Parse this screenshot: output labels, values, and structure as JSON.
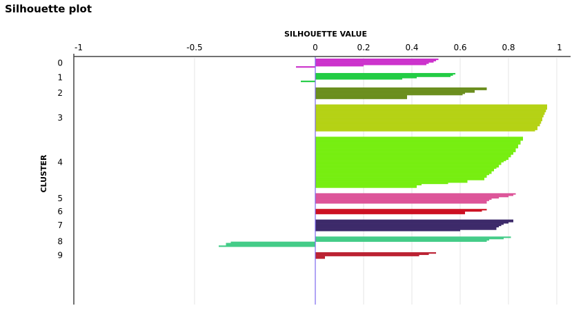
{
  "title": "Silhouette plot",
  "chart_data": {
    "type": "bar",
    "orientation": "horizontal",
    "title": "Silhouette plot",
    "xlabel": "SILHOUETTE VALUE",
    "ylabel": "CLUSTER",
    "xlim": [
      -1,
      1
    ],
    "x_ticks": [
      "-1",
      "-0.5",
      "0",
      "0.2",
      "0.4",
      "0.6",
      "0.8",
      "1"
    ],
    "x_tick_values": [
      -1,
      -0.5,
      0,
      0.2,
      0.4,
      0.6,
      0.8,
      1
    ],
    "grid": true,
    "legend": "none",
    "reference_line": {
      "x": 0,
      "color": "#7b68ee"
    },
    "clusters": [
      {
        "label": "0",
        "color": "#cc33cc",
        "values": [
          0.51,
          0.5,
          0.49,
          0.47,
          0.46,
          0.2,
          -0.08
        ]
      },
      {
        "label": "1",
        "color": "#22cc44",
        "values": [
          0.58,
          0.57,
          0.56,
          0.42,
          0.36,
          0.0,
          -0.06
        ]
      },
      {
        "label": "2",
        "color": "#6b8e1e",
        "values": [
          0.71,
          0.71,
          0.66,
          0.66,
          0.62,
          0.61,
          0.38,
          0.38,
          0.38
        ]
      },
      {
        "label": "3",
        "color": "#b5d215",
        "values": [
          0.96,
          0.96,
          0.96,
          0.96,
          0.955,
          0.955,
          0.95,
          0.95,
          0.945,
          0.945,
          0.94,
          0.94,
          0.94,
          0.935,
          0.935,
          0.93,
          0.93,
          0.92,
          0.92,
          0.92,
          0.91
        ]
      },
      {
        "label": "4",
        "color": "#77ee11",
        "values": [
          0.86,
          0.86,
          0.86,
          0.85,
          0.85,
          0.85,
          0.84,
          0.84,
          0.84,
          0.83,
          0.83,
          0.83,
          0.82,
          0.82,
          0.81,
          0.81,
          0.8,
          0.8,
          0.79,
          0.78,
          0.77,
          0.77,
          0.76,
          0.76,
          0.75,
          0.74,
          0.74,
          0.73,
          0.73,
          0.72,
          0.71,
          0.71,
          0.7,
          0.7,
          0.63,
          0.63,
          0.55,
          0.44,
          0.42,
          0.42
        ]
      },
      {
        "label": "5",
        "color": "#dd5599",
        "values": [
          0.83,
          0.82,
          0.8,
          0.76,
          0.73,
          0.72,
          0.71,
          0.71
        ]
      },
      {
        "label": "6",
        "color": "#cc1122",
        "values": [
          0.71,
          0.69,
          0.62,
          0.62
        ]
      },
      {
        "label": "7",
        "color": "#3d2a6a",
        "values": [
          0.82,
          0.82,
          0.8,
          0.78,
          0.77,
          0.76,
          0.75,
          0.75,
          0.6
        ]
      },
      {
        "label": "8",
        "color": "#44cc88",
        "values": [
          0.81,
          0.78,
          0.72,
          0.71,
          -0.35,
          -0.37,
          -0.37,
          -0.4
        ]
      },
      {
        "label": "9",
        "color": "#bb2233",
        "values": [
          0.5,
          0.47,
          0.43,
          0.04,
          0.04
        ]
      }
    ]
  }
}
